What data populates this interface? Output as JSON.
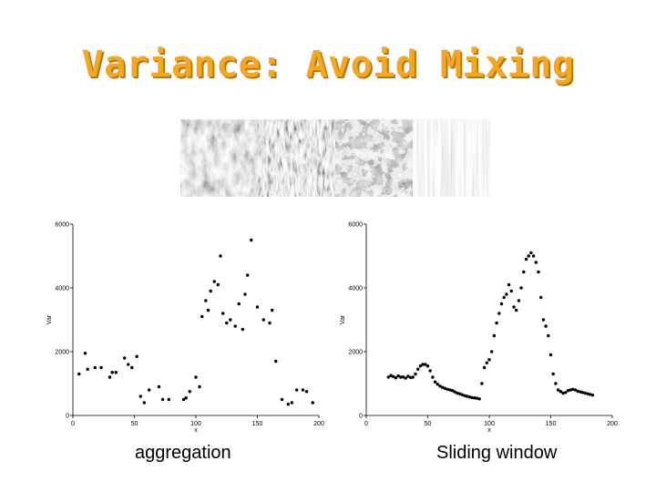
{
  "slide": {
    "title": "Variance: Avoid Mixing",
    "captions": [
      "aggregation",
      "Sliding window"
    ]
  },
  "colors": {
    "title": "#f5a623",
    "title_shadow": "#b07a18",
    "points": "#000000"
  },
  "chart_data": [
    {
      "type": "scatter",
      "title": "",
      "xlabel": "x",
      "ylabel": "Var",
      "xlim": [
        0,
        200
      ],
      "ylim": [
        0,
        6000
      ],
      "xticks": [
        0,
        50,
        100,
        150,
        200
      ],
      "yticks": [
        0,
        2000,
        4000,
        6000
      ],
      "grid": false,
      "x": [
        5,
        10,
        12,
        18,
        23,
        30,
        32,
        35,
        42,
        45,
        48,
        52,
        55,
        58,
        62,
        70,
        73,
        78,
        90,
        92,
        95,
        100,
        103,
        105,
        108,
        110,
        112,
        115,
        118,
        120,
        122,
        125,
        128,
        132,
        135,
        138,
        140,
        142,
        145,
        150,
        155,
        160,
        162,
        165,
        170,
        175,
        178,
        182,
        187,
        190,
        195
      ],
      "y": [
        1300,
        1950,
        1450,
        1500,
        1500,
        1200,
        1350,
        1350,
        1800,
        1600,
        1500,
        1850,
        600,
        400,
        800,
        900,
        500,
        500,
        500,
        550,
        750,
        1200,
        900,
        3100,
        3600,
        3300,
        3900,
        4200,
        4100,
        5000,
        3200,
        2900,
        3000,
        2800,
        3500,
        2700,
        3800,
        4400,
        5500,
        3400,
        3000,
        2900,
        3300,
        1700,
        500,
        350,
        400,
        800,
        800,
        750,
        400
      ]
    },
    {
      "type": "scatter",
      "title": "",
      "xlabel": "x",
      "ylabel": "Var",
      "xlim": [
        0,
        200
      ],
      "ylim": [
        0,
        6000
      ],
      "xticks": [
        0,
        50,
        100,
        150,
        200
      ],
      "yticks": [
        0,
        2000,
        4000,
        6000
      ],
      "grid": false,
      "x": [
        18,
        20,
        22,
        24,
        26,
        28,
        30,
        32,
        34,
        36,
        38,
        40,
        42,
        44,
        46,
        48,
        50,
        52,
        54,
        56,
        58,
        60,
        62,
        64,
        66,
        68,
        70,
        72,
        74,
        76,
        78,
        80,
        82,
        84,
        86,
        88,
        90,
        92,
        94,
        96,
        98,
        100,
        102,
        104,
        106,
        108,
        110,
        112,
        114,
        116,
        118,
        120,
        122,
        124,
        126,
        128,
        130,
        132,
        134,
        136,
        138,
        140,
        142,
        144,
        146,
        148,
        150,
        152,
        154,
        156,
        158,
        160,
        162,
        164,
        166,
        168,
        170,
        172,
        174,
        176,
        178,
        180,
        182,
        184
      ],
      "y": [
        1200,
        1250,
        1220,
        1180,
        1240,
        1200,
        1210,
        1170,
        1230,
        1190,
        1200,
        1300,
        1450,
        1550,
        1600,
        1600,
        1550,
        1400,
        1200,
        1050,
        980,
        920,
        880,
        850,
        820,
        800,
        780,
        740,
        700,
        680,
        650,
        620,
        600,
        580,
        560,
        550,
        540,
        520,
        1000,
        1500,
        1650,
        1750,
        2000,
        2500,
        2900,
        3200,
        3500,
        3700,
        3800,
        4100,
        3900,
        3400,
        3300,
        3600,
        4000,
        4500,
        4900,
        5000,
        5100,
        5000,
        4800,
        4500,
        3700,
        3000,
        2800,
        2500,
        1900,
        1300,
        1000,
        800,
        750,
        700,
        720,
        780,
        800,
        820,
        800,
        760,
        740,
        720,
        700,
        680,
        660,
        640
      ]
    }
  ]
}
